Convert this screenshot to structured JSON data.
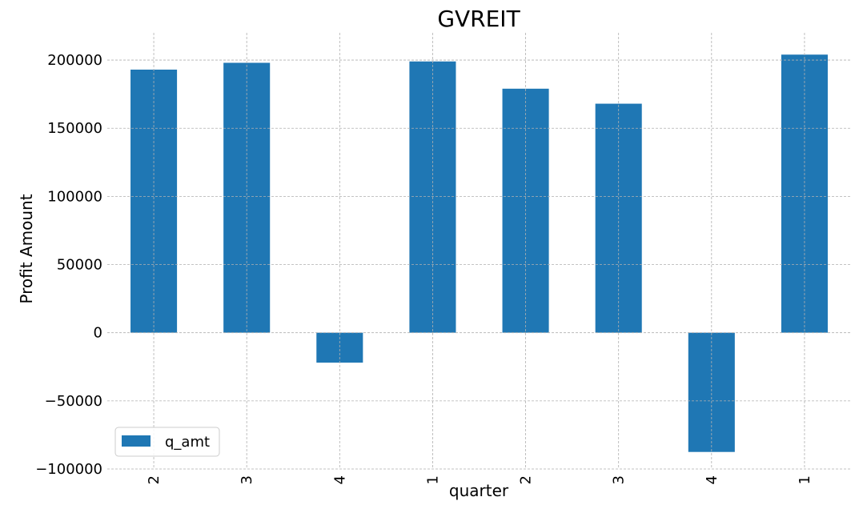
{
  "chart_data": {
    "type": "bar",
    "title": "GVREIT",
    "xlabel": "quarter",
    "ylabel": "Profit Amount",
    "categories": [
      "2",
      "3",
      "4",
      "1",
      "2",
      "3",
      "4",
      "1"
    ],
    "series": [
      {
        "name": "q_amt",
        "values": [
          193000,
          198000,
          -22000,
          199000,
          179000,
          168000,
          -87500,
          204000
        ],
        "color": "#1f77b4"
      }
    ],
    "ylim": [
      -100000,
      220000
    ],
    "yticks": [
      -100000,
      -50000,
      0,
      50000,
      100000,
      150000,
      200000
    ],
    "ytick_labels": [
      "−100000",
      "−50000",
      "0",
      "50000",
      "100000",
      "150000",
      "200000"
    ],
    "grid": true,
    "legend_position": "lower-left"
  }
}
